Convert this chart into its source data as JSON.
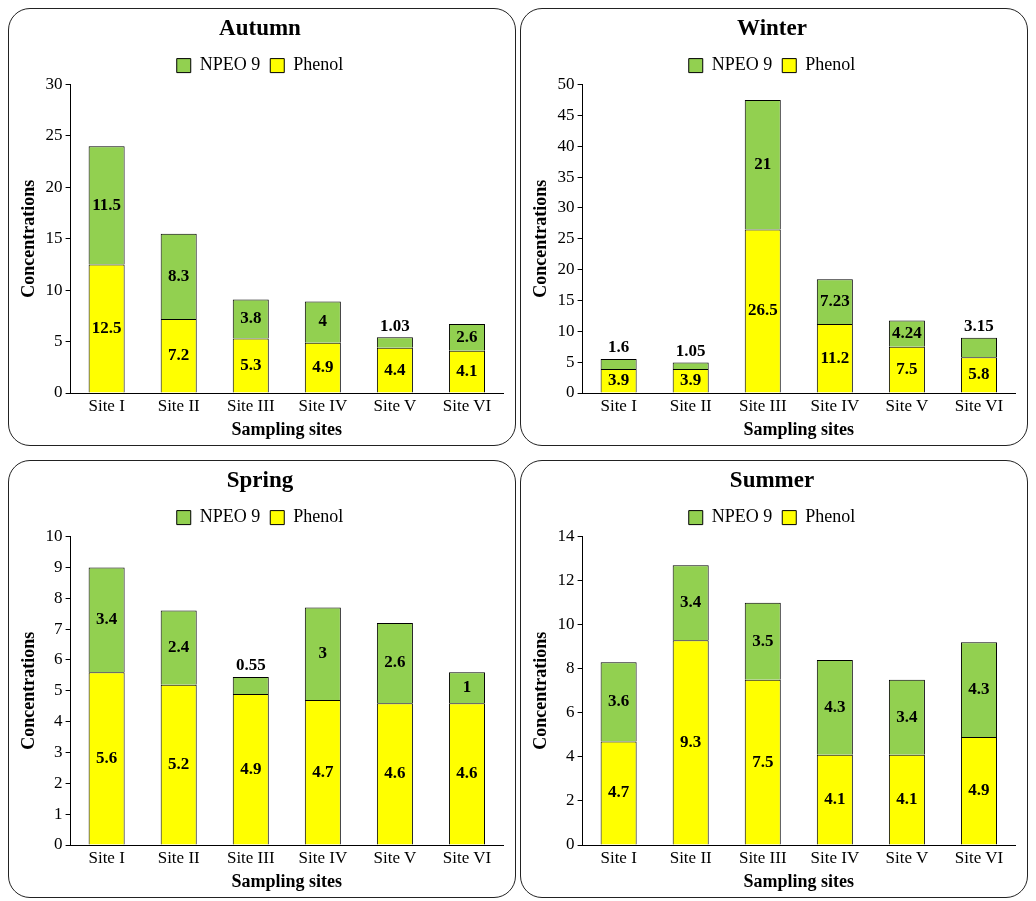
{
  "chart_data": [
    {
      "type": "bar",
      "title": "Autumn",
      "xlabel": "Sampling sites",
      "ylabel": "Concentrations",
      "categories": [
        "Site I",
        "Site II",
        "Site III",
        "Site IV",
        "Site V",
        "Site VI"
      ],
      "stacked": true,
      "ylim": [
        0,
        30
      ],
      "yticks": [
        0,
        5,
        10,
        15,
        20,
        25,
        30
      ],
      "grid": false,
      "legend": "top",
      "data_labels": true,
      "series": [
        {
          "name": "Phenol",
          "color": "#ffff00",
          "values": [
            12.5,
            7.2,
            5.3,
            4.9,
            4.4,
            4.1
          ]
        },
        {
          "name": "NPEO 9",
          "color": "#92d050",
          "values": [
            11.5,
            8.3,
            3.8,
            4,
            1.03,
            2.6
          ]
        }
      ]
    },
    {
      "type": "bar",
      "title": "Winter",
      "xlabel": "Sampling sites",
      "ylabel": "Concentrations",
      "categories": [
        "Site I",
        "Site II",
        "Site III",
        "Site IV",
        "Site V",
        "Site VI"
      ],
      "stacked": true,
      "ylim": [
        0,
        50
      ],
      "yticks": [
        0,
        5,
        10,
        15,
        20,
        25,
        30,
        35,
        40,
        45,
        50
      ],
      "grid": false,
      "legend": "top",
      "data_labels": true,
      "series": [
        {
          "name": "Phenol",
          "color": "#ffff00",
          "values": [
            3.9,
            3.9,
            26.5,
            11.2,
            7.5,
            5.8
          ]
        },
        {
          "name": "NPEO 9",
          "color": "#92d050",
          "values": [
            1.6,
            1.05,
            21,
            7.23,
            4.24,
            3.15
          ]
        }
      ]
    },
    {
      "type": "bar",
      "title": "Spring",
      "xlabel": "Sampling sites",
      "ylabel": "Concentrations",
      "categories": [
        "Site I",
        "Site II",
        "Site III",
        "Site IV",
        "Site V",
        "Site VI"
      ],
      "stacked": true,
      "ylim": [
        0,
        10
      ],
      "yticks": [
        0,
        1,
        2,
        3,
        4,
        5,
        6,
        7,
        8,
        9,
        10
      ],
      "grid": false,
      "legend": "top",
      "data_labels": true,
      "series": [
        {
          "name": "Phenol",
          "color": "#ffff00",
          "values": [
            5.6,
            5.2,
            4.9,
            4.7,
            4.6,
            4.6
          ]
        },
        {
          "name": "NPEO 9",
          "color": "#92d050",
          "values": [
            3.4,
            2.4,
            0.55,
            3,
            2.6,
            1
          ]
        }
      ]
    },
    {
      "type": "bar",
      "title": "Summer",
      "xlabel": "Sampling sites",
      "ylabel": "Concentrations",
      "categories": [
        "Site I",
        "Site II",
        "Site III",
        "Site IV",
        "Site V",
        "Site VI"
      ],
      "stacked": true,
      "ylim": [
        0,
        14
      ],
      "yticks": [
        0,
        2,
        4,
        6,
        8,
        10,
        12,
        14
      ],
      "grid": false,
      "legend": "top",
      "data_labels": true,
      "series": [
        {
          "name": "Phenol",
          "color": "#ffff00",
          "values": [
            4.7,
            9.3,
            7.5,
            4.1,
            4.1,
            4.9
          ]
        },
        {
          "name": "NPEO 9",
          "color": "#92d050",
          "values": [
            3.6,
            3.4,
            3.5,
            4.3,
            3.4,
            4.3
          ]
        }
      ]
    }
  ]
}
